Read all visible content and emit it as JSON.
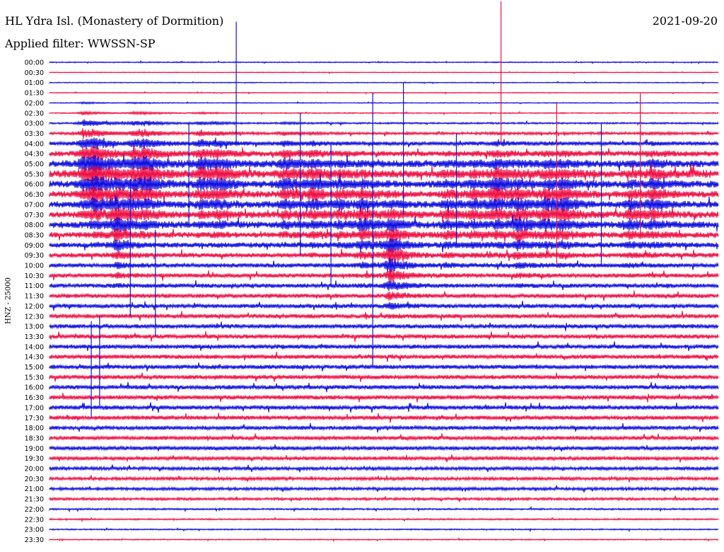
{
  "header": {
    "station": "HL Ydra Isl. (Monastery of Dormition)",
    "date": "2021-09-20",
    "filter": "Applied filter: WWSSN-SP"
  },
  "channel_label": "HNZ - 25000",
  "colors": {
    "trace_even": "#1010e0",
    "trace_odd": "#ee1144",
    "background": "#ffffff"
  },
  "chart_data": {
    "type": "line",
    "title": "",
    "rows": [
      "00:00",
      "00:30",
      "01:00",
      "01:30",
      "02:00",
      "02:30",
      "03:00",
      "03:30",
      "04:00",
      "04:30",
      "05:00",
      "05:30",
      "06:00",
      "06:30",
      "07:00",
      "07:30",
      "08:00",
      "08:30",
      "09:00",
      "09:30",
      "10:00",
      "10:30",
      "11:00",
      "11:30",
      "12:00",
      "12:30",
      "13:00",
      "13:30",
      "14:00",
      "14:30",
      "15:00",
      "15:30",
      "16:00",
      "16:30",
      "17:00",
      "17:30",
      "18:00",
      "18:30",
      "19:00",
      "19:30",
      "20:00",
      "20:30",
      "21:00",
      "21:30",
      "22:00",
      "22:30",
      "23:00",
      "23:30"
    ],
    "row_minutes": 30,
    "ylabel": "HNZ - 25000",
    "grid": false,
    "trace_colors": [
      "#1010e0",
      "#ee1144"
    ],
    "noise_levels": [
      0.5,
      0.4,
      0.4,
      0.4,
      0.4,
      0.5,
      0.8,
      1.2,
      1.8,
      2.5,
      3.2,
      3.5,
      3.2,
      3.0,
      3.0,
      3.0,
      3.0,
      2.6,
      2.4,
      2.2,
      2.0,
      2.0,
      2.0,
      2.0,
      2.0,
      2.0,
      2.0,
      2.0,
      2.0,
      2.0,
      2.0,
      2.0,
      2.0,
      2.0,
      2.0,
      2.0,
      1.8,
      1.8,
      1.8,
      1.7,
      1.6,
      1.5,
      1.4,
      1.2,
      0.8,
      0.7,
      0.6,
      0.5
    ],
    "events": [
      {
        "minute": 6,
        "row_start": 2,
        "peak_row": 10,
        "amplitude": 9
      },
      {
        "minute": 8,
        "row_start": 1,
        "peak_row": 12,
        "amplitude": 10
      },
      {
        "minute": 12,
        "row_start": 6,
        "peak_row": 16,
        "amplitude": 9
      },
      {
        "minute": 15,
        "row_start": 4,
        "peak_row": 10,
        "amplitude": 6
      },
      {
        "minute": 17,
        "row_start": 5,
        "peak_row": 11,
        "amplitude": 7
      },
      {
        "minute": 27,
        "row_start": 0,
        "peak_row": 11,
        "amplitude": 8
      },
      {
        "minute": 30,
        "row_start": 6,
        "peak_row": 12,
        "amplitude": 6
      },
      {
        "minute": 42,
        "row_start": 3,
        "peak_row": 12,
        "amplitude": 8
      },
      {
        "minute": 47,
        "row_start": 7,
        "peak_row": 13,
        "amplitude": 6
      },
      {
        "minute": 52,
        "row_start": 8,
        "peak_row": 14,
        "amplitude": 5
      },
      {
        "minute": 56,
        "row_start": 6,
        "peak_row": 16,
        "amplitude": 7
      },
      {
        "minute": 61,
        "row_start": 4,
        "peak_row": 19,
        "amplitude": 11
      },
      {
        "minute": 71,
        "row_start": 8,
        "peak_row": 15,
        "amplitude": 6
      },
      {
        "minute": 76,
        "row_start": 6,
        "peak_row": 14,
        "amplitude": 5
      },
      {
        "minute": 80,
        "row_start": 3,
        "peak_row": 13,
        "amplitude": 8
      },
      {
        "minute": 84,
        "row_start": 5,
        "peak_row": 16,
        "amplitude": 8
      },
      {
        "minute": 89,
        "row_start": 5,
        "peak_row": 14,
        "amplitude": 7
      },
      {
        "minute": 92,
        "row_start": 9,
        "peak_row": 14,
        "amplitude": 6
      },
      {
        "minute": 104,
        "row_start": 7,
        "peak_row": 15,
        "amplitude": 6
      },
      {
        "minute": 108,
        "row_start": 7,
        "peak_row": 13,
        "amplitude": 6
      }
    ],
    "spikes": [
      {
        "minute": 7.5,
        "row": 28,
        "up": 5,
        "down": 14
      },
      {
        "minute": 9,
        "row": 28,
        "up": 6,
        "down": 12
      },
      {
        "minute": 14.5,
        "row": 16,
        "up": 9,
        "down": 18
      },
      {
        "minute": 19,
        "row": 20,
        "up": 7,
        "down": 14
      },
      {
        "minute": 25,
        "row": 12,
        "up": 12,
        "down": 8
      },
      {
        "minute": 33.5,
        "row": 4,
        "up": 16,
        "down": 8
      },
      {
        "minute": 45,
        "row": 10,
        "up": 10,
        "down": 18
      },
      {
        "minute": 50.5,
        "row": 14,
        "up": 12,
        "down": 16
      },
      {
        "minute": 58,
        "row": 10,
        "up": 14,
        "down": 40
      },
      {
        "minute": 63.5,
        "row": 6,
        "up": 8,
        "down": 18
      },
      {
        "minute": 73,
        "row": 12,
        "up": 10,
        "down": 12
      },
      {
        "minute": 81,
        "row": 3,
        "up": 18,
        "down": 10
      },
      {
        "minute": 91,
        "row": 11,
        "up": 14,
        "down": 18
      },
      {
        "minute": 99,
        "row": 12,
        "up": 12,
        "down": 16
      },
      {
        "minute": 106,
        "row": 9,
        "up": 12,
        "down": 16
      }
    ]
  }
}
